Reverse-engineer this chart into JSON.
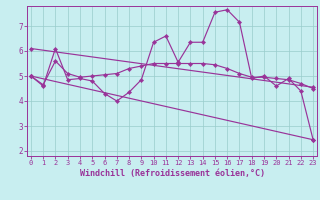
{
  "xlabel": "Windchill (Refroidissement éolien,°C)",
  "bg_color": "#c8eef0",
  "line_color": "#993399",
  "grid_color": "#99cccc",
  "ylim": [
    1.8,
    7.8
  ],
  "xlim": [
    -0.3,
    23.3
  ],
  "x_ticks": [
    0,
    1,
    2,
    3,
    4,
    5,
    6,
    7,
    8,
    9,
    10,
    11,
    12,
    13,
    14,
    15,
    16,
    17,
    18,
    19,
    20,
    21,
    22,
    23
  ],
  "y_ticks": [
    2,
    3,
    4,
    5,
    6,
    7
  ],
  "series1_x": [
    0,
    1,
    2,
    3,
    4,
    5,
    6,
    7,
    8,
    9,
    10,
    11,
    12,
    13,
    14,
    15,
    16,
    17,
    18,
    19,
    20,
    21,
    22,
    23
  ],
  "series1_y": [
    5.0,
    4.6,
    6.1,
    4.85,
    4.9,
    4.8,
    4.3,
    4.0,
    4.35,
    4.85,
    6.35,
    6.6,
    5.55,
    6.35,
    6.35,
    7.55,
    7.65,
    7.15,
    4.9,
    5.0,
    4.6,
    4.9,
    4.4,
    2.45
  ],
  "series2_x": [
    0,
    1,
    2,
    3,
    4,
    5,
    6,
    7,
    8,
    9,
    10,
    11,
    12,
    13,
    14,
    15,
    16,
    17,
    18,
    19,
    20,
    21,
    22,
    23
  ],
  "series2_y": [
    5.0,
    4.65,
    5.6,
    5.1,
    4.95,
    5.0,
    5.05,
    5.1,
    5.3,
    5.4,
    5.5,
    5.5,
    5.5,
    5.5,
    5.5,
    5.45,
    5.3,
    5.1,
    4.95,
    4.95,
    4.9,
    4.85,
    4.7,
    4.5
  ],
  "series3_x": [
    0,
    23
  ],
  "series3_y": [
    6.1,
    4.55
  ],
  "series4_x": [
    0,
    23
  ],
  "series4_y": [
    5.0,
    2.45
  ],
  "tick_fontsize": 5,
  "xlabel_fontsize": 6,
  "marker_size": 2.2,
  "linewidth": 0.85
}
